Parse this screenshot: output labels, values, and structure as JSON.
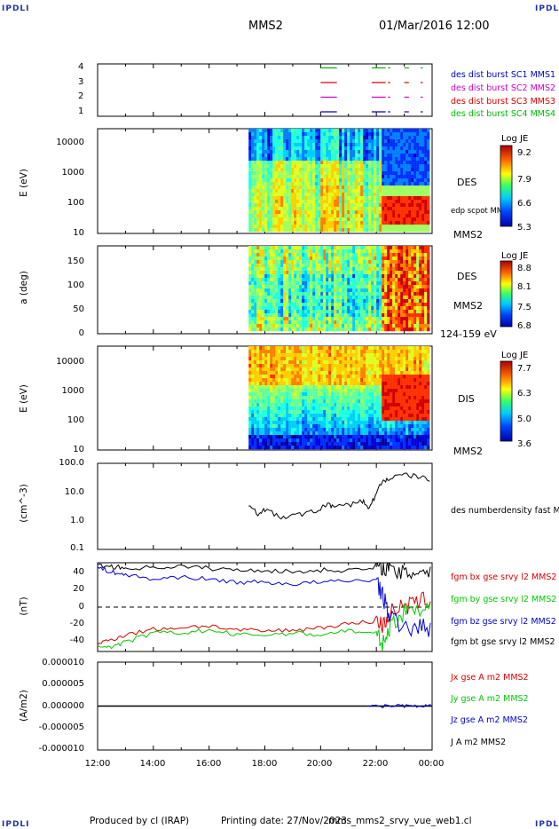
{
  "header": {
    "corner_tl": "IPDLI",
    "corner_tr": "IPDLI",
    "corner_bl": "IPDLI",
    "corner_br": "IPDLI",
    "spacecraft": "MMS2",
    "datetime": "01/Mar/2016 12:00"
  },
  "footer": {
    "produced_by": "Produced by cl (IRAP)",
    "printing_date": "Printing date: 27/Nov/2023",
    "filename": "mms_mms2_srvy_vue_web1.cl"
  },
  "colors": {
    "mms1": "#0000cc",
    "mms2": "#cc00cc",
    "mms3": "#dd0000",
    "mms4": "#00bb00",
    "bx": "#dd0000",
    "by": "#00cc00",
    "bz": "#0000dd",
    "bt": "#000000"
  },
  "chart_data": [
    {
      "type": "scatter",
      "panel": "burst-availability",
      "yticks": [
        "4",
        "3",
        "2",
        "1"
      ],
      "series": [
        {
          "name": "des dist burst SC1 MMS1",
          "y": 1,
          "intervals": [
            [
              "20:00",
              "20:35"
            ],
            [
              "21:50",
              "22:20"
            ],
            [
              "22:25",
              "22:30"
            ],
            [
              "23:00",
              "23:10"
            ],
            [
              "23:35",
              "23:40"
            ]
          ]
        },
        {
          "name": "des dist burst SC2 MMS2",
          "y": 2,
          "intervals": [
            [
              "20:00",
              "20:35"
            ],
            [
              "21:50",
              "22:20"
            ],
            [
              "22:25",
              "22:30"
            ],
            [
              "23:00",
              "23:10"
            ],
            [
              "23:35",
              "23:40"
            ]
          ]
        },
        {
          "name": "des dist burst SC3 MMS3",
          "y": 3,
          "intervals": [
            [
              "20:00",
              "20:35"
            ],
            [
              "21:50",
              "22:20"
            ],
            [
              "22:25",
              "22:30"
            ],
            [
              "23:00",
              "23:10"
            ],
            [
              "23:35",
              "23:40"
            ]
          ]
        },
        {
          "name": "des dist burst SC4 MMS4",
          "y": 4,
          "intervals": [
            [
              "20:00",
              "20:35"
            ],
            [
              "21:50",
              "22:20"
            ],
            [
              "22:25",
              "22:30"
            ],
            [
              "23:00",
              "23:10"
            ],
            [
              "23:35",
              "23:40"
            ]
          ]
        }
      ]
    },
    {
      "type": "heatmap",
      "panel": "des-energy",
      "ylabel": "E (eV)",
      "yticks": [
        "10000",
        "1000",
        "100",
        "10"
      ],
      "ylim": [
        10,
        30000
      ],
      "yscale": "log",
      "label_right": [
        "DES",
        "MMS2"
      ],
      "overlay_label": "edp scpot MMS2",
      "colorbar": {
        "title": "Log JE",
        "ticks": [
          "9.2",
          "7.9",
          "6.6",
          "5.3"
        ],
        "range": [
          5.3,
          9.2
        ]
      },
      "data_start": "17:25"
    },
    {
      "type": "heatmap",
      "panel": "des-pitch",
      "ylabel": "a (deg)",
      "yticks": [
        "150",
        "100",
        "50",
        "0"
      ],
      "ylim": [
        0,
        180
      ],
      "label_right": [
        "DES",
        "MMS2"
      ],
      "energy_range": "124-159 eV",
      "colorbar": {
        "title": "Log JE",
        "ticks": [
          "8.8",
          "8.1",
          "7.5",
          "6.8"
        ],
        "range": [
          6.8,
          8.8
        ]
      },
      "data_start": "17:25"
    },
    {
      "type": "heatmap",
      "panel": "dis-energy",
      "ylabel": "E (eV)",
      "yticks": [
        "10000",
        "1000",
        "100",
        "10"
      ],
      "ylim": [
        10,
        30000
      ],
      "yscale": "log",
      "label_right": [
        "DIS",
        "MMS2"
      ],
      "colorbar": {
        "title": "Log JE",
        "ticks": [
          "7.7",
          "6.3",
          "5.0",
          "3.6"
        ],
        "range": [
          3.6,
          7.7
        ]
      },
      "data_start": "17:25"
    },
    {
      "type": "line",
      "panel": "density",
      "ylabel": "(cm^-3)",
      "yticks": [
        "100.0",
        "10.0",
        "1.0",
        "0.1"
      ],
      "ylim": [
        0.1,
        100
      ],
      "yscale": "log",
      "series": [
        {
          "name": "des numberdensity fast M",
          "color": "#000000",
          "x": [
            "17:25",
            "17:45",
            "18:00",
            "18:30",
            "19:00",
            "19:30",
            "20:00",
            "20:15",
            "20:30",
            "21:00",
            "21:30",
            "21:45",
            "22:00",
            "22:15",
            "22:30",
            "23:00",
            "23:30",
            "00:00"
          ],
          "y": [
            3.0,
            1.8,
            2.5,
            1.3,
            1.5,
            1.8,
            2.5,
            4.0,
            3.0,
            3.5,
            5.0,
            2.5,
            8.0,
            25,
            30,
            40,
            35,
            25
          ]
        }
      ]
    },
    {
      "type": "line",
      "panel": "fgm",
      "ylabel": "(nT)",
      "yticks": [
        "40",
        "20",
        "0",
        "-20",
        "-40"
      ],
      "ylim": [
        -48,
        48
      ],
      "series": [
        {
          "name": "fgm bx gse srvy l2 MMS2",
          "color": "#dd0000",
          "x": [
            "12:00",
            "12:30",
            "13:00",
            "14:00",
            "15:00",
            "16:00",
            "17:00",
            "18:00",
            "19:00",
            "20:00",
            "21:00",
            "22:00",
            "22:15",
            "22:30",
            "23:00",
            "23:30",
            "00:00"
          ],
          "y": [
            -40,
            -35,
            -30,
            -24,
            -22,
            -20,
            -25,
            -26,
            -25,
            -22,
            -18,
            -15,
            -20,
            -5,
            0,
            5,
            10
          ]
        },
        {
          "name": "fgm by gse srvy l2 MMS2",
          "color": "#00cc00",
          "x": [
            "12:00",
            "12:30",
            "13:00",
            "14:00",
            "15:00",
            "16:00",
            "17:00",
            "18:00",
            "19:00",
            "20:00",
            "21:00",
            "22:00",
            "22:15",
            "22:30",
            "23:00",
            "23:30",
            "00:00"
          ],
          "y": [
            -42,
            -43,
            -38,
            -28,
            -28,
            -25,
            -30,
            -30,
            -28,
            -30,
            -25,
            -30,
            -40,
            -20,
            -5,
            0,
            0
          ]
        },
        {
          "name": "fgm bz gse srvy l2 MMS2",
          "color": "#0000dd",
          "x": [
            "12:00",
            "12:30",
            "13:00",
            "14:00",
            "15:00",
            "16:00",
            "17:00",
            "18:00",
            "19:00",
            "20:00",
            "21:00",
            "22:00",
            "22:15",
            "22:30",
            "23:00",
            "23:30",
            "00:00"
          ],
          "y": [
            43,
            38,
            35,
            30,
            33,
            30,
            27,
            27,
            25,
            27,
            28,
            30,
            10,
            -10,
            -25,
            -20,
            -25
          ]
        },
        {
          "name": "fgm bt gse srvy l2 MMS2",
          "color": "#000000",
          "x": [
            "12:00",
            "12:30",
            "13:00",
            "14:00",
            "15:00",
            "16:00",
            "17:00",
            "18:00",
            "19:00",
            "20:00",
            "21:00",
            "22:00",
            "22:15",
            "22:30",
            "23:00",
            "23:30",
            "00:00"
          ],
          "y": [
            45,
            44,
            42,
            43,
            44,
            42,
            40,
            40,
            38,
            40,
            40,
            42,
            45,
            40,
            35,
            40,
            40
          ]
        }
      ]
    },
    {
      "type": "line",
      "panel": "current",
      "ylabel": "(A/m2)",
      "yticks": [
        "0.000010",
        "0.000005",
        "0.000000",
        "-0.000005",
        "-0.000010"
      ],
      "ylim": [
        -1e-05,
        1e-05
      ],
      "series": [
        {
          "name": "Jx gse A m2 MMS2",
          "color": "#dd0000",
          "x": [
            "12:00",
            "00:00"
          ],
          "y": [
            0,
            0
          ]
        },
        {
          "name": "Jy gse A m2 MMS2",
          "color": "#00cc00",
          "x": [
            "12:00",
            "00:00"
          ],
          "y": [
            0,
            0
          ]
        },
        {
          "name": "Jz gse A m2 MMS2",
          "color": "#0000dd",
          "x": [
            "12:00",
            "00:00"
          ],
          "y": [
            0,
            0
          ]
        },
        {
          "name": "J A m2 MMS2",
          "color": "#000000",
          "x": [
            "12:00",
            "00:00"
          ],
          "y": [
            0,
            0
          ]
        }
      ]
    }
  ],
  "time_axis": {
    "ticks": [
      "12:00",
      "14:00",
      "16:00",
      "18:00",
      "20:00",
      "22:00",
      "00:00"
    ],
    "range": [
      "12:00",
      "00:00"
    ]
  }
}
